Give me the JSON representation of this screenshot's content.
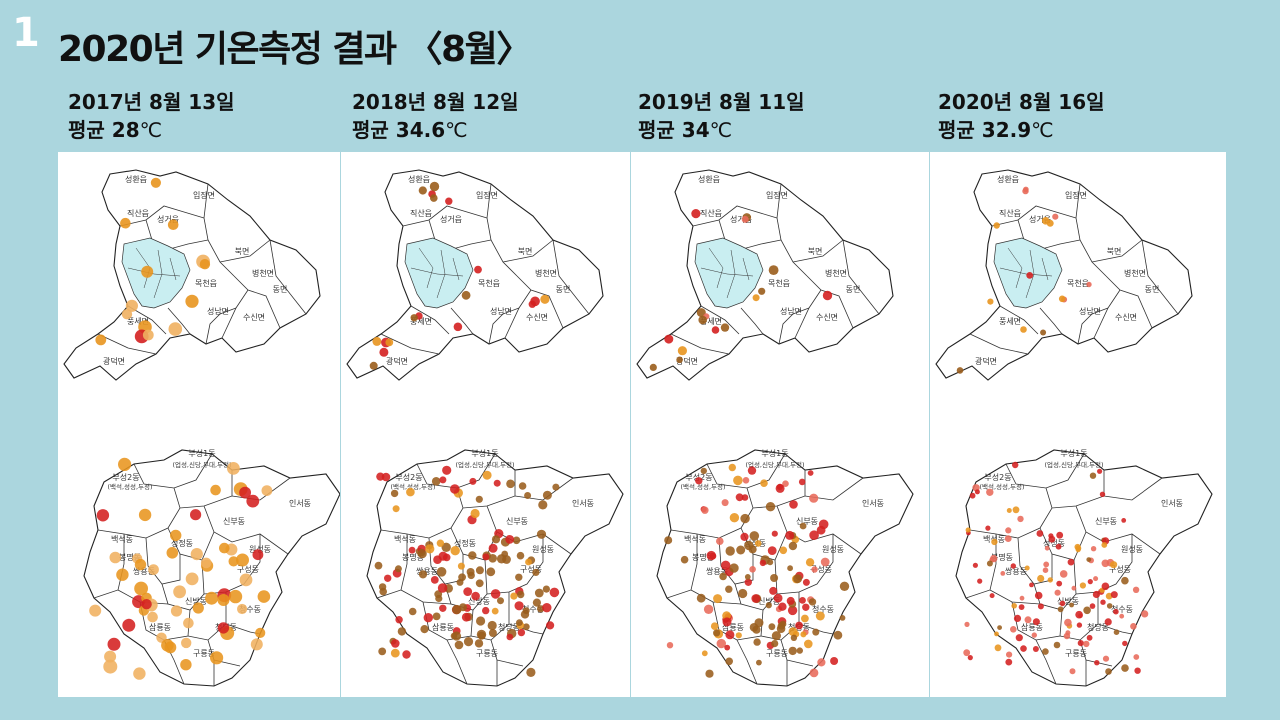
{
  "slide": {
    "number": "1",
    "title": "2020년 기온측정 결과 〈8월〉"
  },
  "panels": [
    {
      "date": "2017년 8월 13일",
      "avg_label": "평균",
      "avg_value": "28",
      "unit": "℃"
    },
    {
      "date": "2018년 8월 12일",
      "avg_label": "평균",
      "avg_value": "34.6",
      "unit": "℃"
    },
    {
      "date": "2019년 8월 11일",
      "avg_label": "평균",
      "avg_value": "34",
      "unit": "℃"
    },
    {
      "date": "2020년 8월 16일",
      "avg_label": "평균",
      "avg_value": "32.9",
      "unit": "℃"
    }
  ],
  "region_labels": {
    "county": [
      "성환읍",
      "입장면",
      "직산읍",
      "성거읍",
      "북면",
      "병천면",
      "동면",
      "목천읍",
      "성남면",
      "수신면",
      "풍세면",
      "광덕면"
    ],
    "city": [
      "부성1동",
      "부성2동",
      "(업성,신당,부대,두정)",
      "(백석,성성,두정)",
      "인서동",
      "백석동",
      "신부동",
      "성정동",
      "원성동",
      "봉명동",
      "구성동",
      "쌍용동",
      "청수동",
      "신방동",
      "삼룡동",
      "청당동",
      "구룡동"
    ]
  },
  "colors": {
    "background": "#abd6de",
    "district_fill": "#c9eef1",
    "cool": "#e8951f",
    "light": "#f0b060",
    "hot": "#d42020",
    "brown": "#9a5d1c",
    "pink": "#e86a5a"
  }
}
